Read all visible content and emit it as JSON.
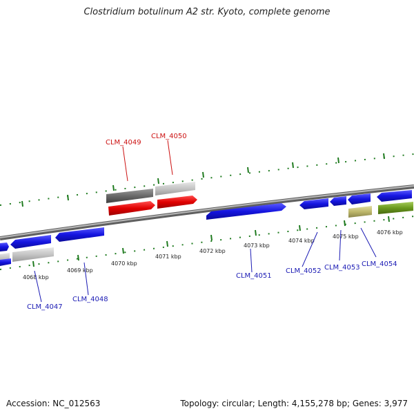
{
  "title": "Clostridium botulinum A2 str. Kyoto, complete genome",
  "footer": {
    "accession": "Accession: NC_012563",
    "summary": "Topology: circular; Length: 4,155,278 bp; Genes: 3,977"
  },
  "colors": {
    "forward_gene": "#1a1ae6",
    "reverse_gene": "#1a1ae6",
    "highlight_gene": "#e60000",
    "tick": "#1e7a1e",
    "backbone": "#888888",
    "label_blue": "#1a1ab4",
    "label_red": "#cc1111"
  },
  "ruler_labels": [
    "4068 kbp",
    "4069 kbp",
    "4070 kbp",
    "4071 kbp",
    "4072 kbp",
    "4073 kbp",
    "4074 kbp",
    "4075 kbp",
    "4076 kbp"
  ],
  "gene_labels": {
    "clm_4047": "CLM_4047",
    "clm_4048": "CLM_4048",
    "clm_4049": "CLM_4049",
    "clm_4050": "CLM_4050",
    "clm_4051": "CLM_4051",
    "clm_4052": "CLM_4052",
    "clm_4053": "CLM_4053",
    "clm_4054": "CLM_4054"
  }
}
